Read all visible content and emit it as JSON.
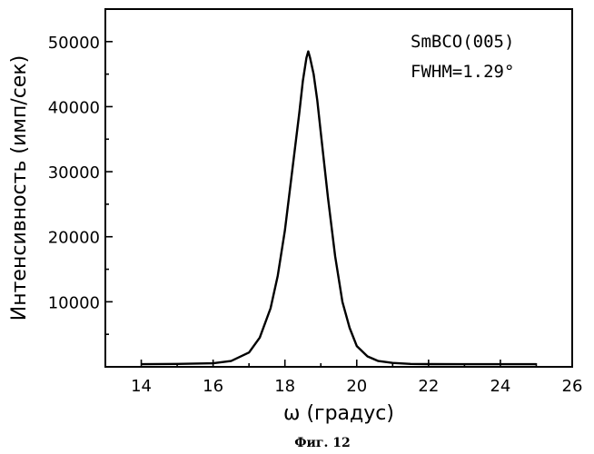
{
  "chart_data": {
    "type": "line",
    "xlabel": "ω (градус)",
    "ylabel": "Интенсивность (имп/сек)",
    "xlim": [
      13,
      26
    ],
    "ylim": [
      0,
      55000
    ],
    "xticks": [
      14,
      16,
      18,
      20,
      22,
      24,
      26
    ],
    "yticks": [
      10000,
      20000,
      30000,
      40000,
      50000
    ],
    "grid": false,
    "annotations": [
      "SmBCO(005)",
      "FWHM=1.29°"
    ],
    "caption": "Фиг. 12",
    "series": [
      {
        "x": [
          14.0,
          15.0,
          16.0,
          16.5,
          17.0,
          17.3,
          17.6,
          17.8,
          18.0,
          18.2,
          18.4,
          18.5,
          18.6,
          18.65,
          18.7,
          18.8,
          18.9,
          19.0,
          19.2,
          19.4,
          19.6,
          19.8,
          20.0,
          20.3,
          20.6,
          21.0,
          21.5,
          22.0,
          23.0,
          24.0,
          25.0
        ],
        "y": [
          400,
          450,
          550,
          900,
          2200,
          4500,
          9000,
          14000,
          21000,
          30000,
          39000,
          44000,
          47500,
          48500,
          47500,
          45000,
          41000,
          36000,
          26000,
          17000,
          10000,
          6000,
          3200,
          1600,
          900,
          600,
          450,
          420,
          400,
          400,
          400
        ]
      }
    ]
  }
}
